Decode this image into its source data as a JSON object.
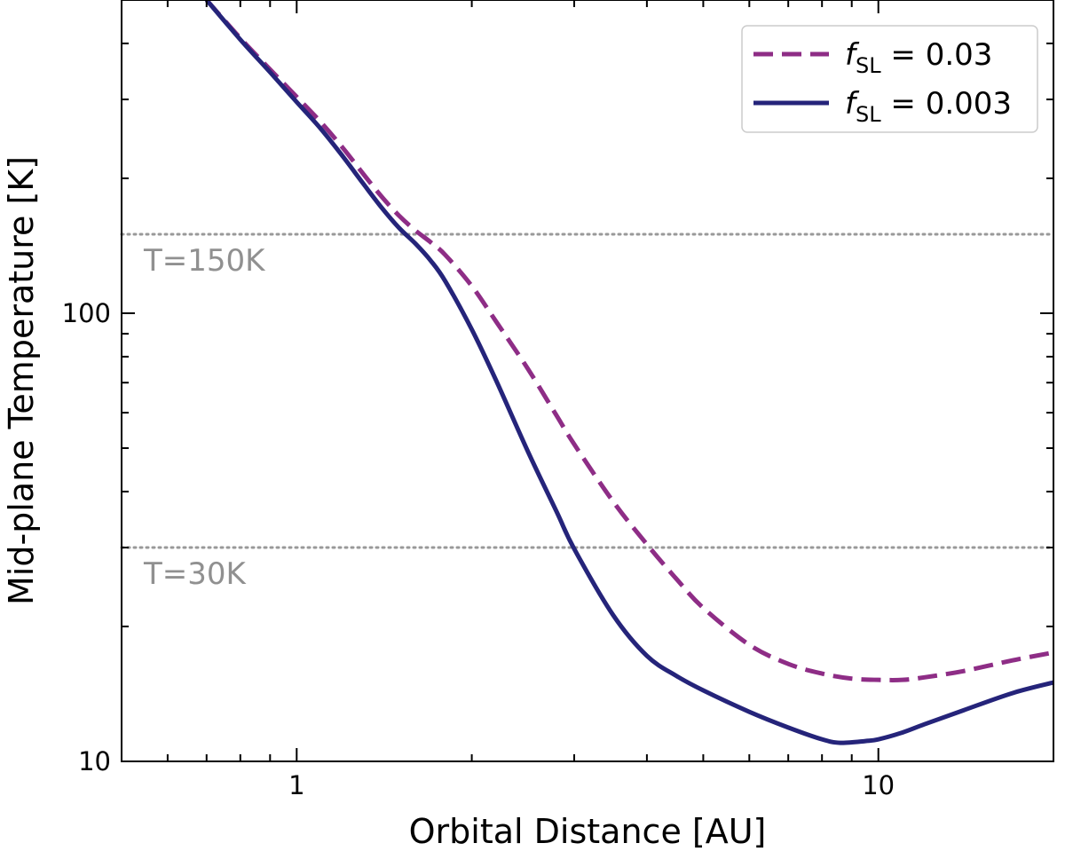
{
  "chart_data": {
    "type": "line",
    "title": "",
    "xlabel": "Orbital Distance [AU]",
    "ylabel": "Mid-plane Temperature [K]",
    "xscale": "log",
    "yscale": "log",
    "xlim": [
      0.5,
      20
    ],
    "ylim": [
      10,
      500
    ],
    "grid": false,
    "legend_position": "top-right",
    "x_ticks": [
      {
        "value": 1,
        "label": "1"
      },
      {
        "value": 10,
        "label": "10"
      }
    ],
    "y_ticks": [
      {
        "value": 10,
        "label": "10"
      },
      {
        "value": 100,
        "label": "100"
      }
    ],
    "reference_lines": [
      {
        "y": 150,
        "label": "T=150K",
        "color": "#999999"
      },
      {
        "y": 30,
        "label": "T=30K",
        "color": "#999999"
      }
    ],
    "series": [
      {
        "name": "f_SL = 0.03",
        "legend_main": "f",
        "legend_sub": "SL",
        "legend_value": " = 0.03",
        "color": "#8e2d86",
        "style": "dashed",
        "x": [
          0.7,
          0.8,
          0.9,
          1.0,
          1.1,
          1.2,
          1.3,
          1.4,
          1.5,
          1.6,
          1.7,
          1.8,
          2.0,
          2.2,
          2.5,
          2.8,
          3.0,
          3.5,
          4.0,
          4.5,
          5.0,
          6.0,
          7.0,
          8.0,
          9.0,
          10.0,
          11.0,
          12.0,
          14.0,
          17.0,
          20.0
        ],
        "y": [
          500,
          411,
          350,
          304,
          267,
          234,
          205,
          182,
          165,
          153,
          144,
          135,
          115,
          96,
          75,
          59,
          51,
          38,
          30.5,
          25.5,
          22,
          18.2,
          16.5,
          15.7,
          15.3,
          15.2,
          15.2,
          15.4,
          15.9,
          16.8,
          17.5
        ]
      },
      {
        "name": "f_SL = 0.003",
        "legend_main": "f",
        "legend_sub": "SL",
        "legend_value": " = 0.003",
        "color": "#25247a",
        "style": "solid",
        "x": [
          0.7,
          0.8,
          0.9,
          1.0,
          1.1,
          1.2,
          1.3,
          1.4,
          1.5,
          1.6,
          1.7,
          1.8,
          2.0,
          2.2,
          2.5,
          2.8,
          3.0,
          3.5,
          4.0,
          4.5,
          5.0,
          6.0,
          7.0,
          8.0,
          8.6,
          9.5,
          10.0,
          11.0,
          12.0,
          14.0,
          17.0,
          20.0
        ],
        "y": [
          500,
          408,
          345,
          296,
          258,
          224,
          195,
          172,
          155,
          143,
          131,
          118,
          92,
          71,
          49,
          36,
          29.8,
          21.2,
          17.2,
          15.5,
          14.4,
          12.9,
          11.9,
          11.2,
          11.0,
          11.1,
          11.2,
          11.6,
          12.1,
          13.0,
          14.2,
          15.0
        ]
      }
    ]
  }
}
